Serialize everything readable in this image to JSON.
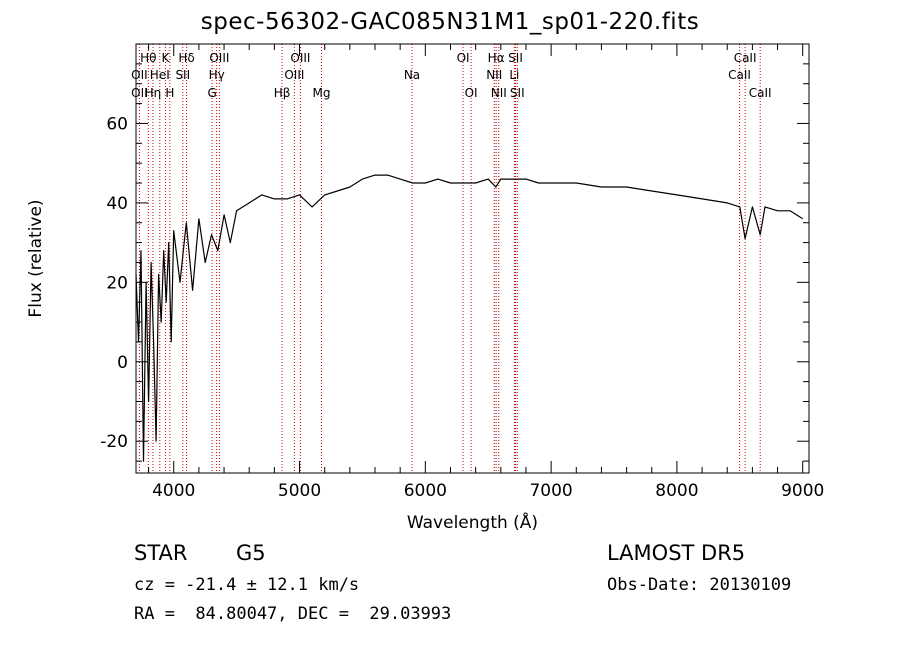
{
  "chart_data": {
    "type": "line",
    "title": "spec-56302-GAC085N31M1_sp01-220.fits",
    "xlabel": "Wavelength (Å)",
    "ylabel": "Flux (relative)",
    "xlim": [
      3700,
      9050
    ],
    "ylim": [
      -28,
      80
    ],
    "xticks": [
      4000,
      5000,
      6000,
      7000,
      8000,
      9000
    ],
    "yticks": [
      -20,
      0,
      20,
      40,
      60
    ],
    "grid": false,
    "line_color": "#000000",
    "marker_color": "#cc0000",
    "series": [
      {
        "x": [
          3700,
          3720,
          3740,
          3760,
          3780,
          3800,
          3820,
          3840,
          3860,
          3880,
          3900,
          3920,
          3940,
          3960,
          3980,
          4000,
          4050,
          4100,
          4150,
          4200,
          4250,
          4300,
          4350,
          4400,
          4450,
          4500,
          4600,
          4700,
          4800,
          4900,
          5000,
          5100,
          5200,
          5300,
          5400,
          5500,
          5600,
          5700,
          5800,
          5900,
          6000,
          6100,
          6200,
          6300,
          6400,
          6500,
          6560,
          6600,
          6700,
          6800,
          6900,
          7000,
          7200,
          7400,
          7600,
          7800,
          8000,
          8200,
          8400,
          8500,
          8542,
          8600,
          8662,
          8700,
          8800,
          8900,
          9000
        ],
        "y": [
          22,
          5,
          28,
          -25,
          20,
          -10,
          25,
          5,
          -20,
          22,
          10,
          28,
          15,
          30,
          5,
          33,
          20,
          35,
          18,
          36,
          25,
          32,
          28,
          37,
          30,
          38,
          40,
          42,
          41,
          41,
          42,
          39,
          42,
          43,
          44,
          46,
          47,
          47,
          46,
          45,
          45,
          46,
          45,
          45,
          45,
          46,
          44,
          46,
          46,
          46,
          45,
          45,
          45,
          44,
          44,
          43,
          42,
          41,
          40,
          39,
          31,
          39,
          32,
          39,
          38,
          38,
          36
        ]
      }
    ],
    "lines": [
      {
        "label": "Hθ",
        "x": 3798,
        "row": 1
      },
      {
        "label": "OII",
        "x": 3727,
        "row": 2
      },
      {
        "label": "OII",
        "x": 3727,
        "row": 3
      },
      {
        "label": "Hη",
        "x": 3835,
        "row": 3
      },
      {
        "label": "HeI",
        "x": 3889,
        "row": 2
      },
      {
        "label": "K",
        "x": 3934,
        "row": 1
      },
      {
        "label": "H",
        "x": 3969,
        "row": 3
      },
      {
        "label": "Hδ",
        "x": 4102,
        "row": 1
      },
      {
        "label": "SII",
        "x": 4072,
        "row": 2
      },
      {
        "label": "OIII",
        "x": 4363,
        "row": 1
      },
      {
        "label": "Hγ",
        "x": 4341,
        "row": 2
      },
      {
        "label": "G",
        "x": 4305,
        "row": 3
      },
      {
        "label": "Hβ",
        "x": 4861,
        "row": 3
      },
      {
        "label": "OIII",
        "x": 5007,
        "row": 1
      },
      {
        "label": "OIII",
        "x": 4959,
        "row": 2
      },
      {
        "label": "Mg",
        "x": 5175,
        "row": 3
      },
      {
        "label": "Na",
        "x": 5894,
        "row": 2
      },
      {
        "label": "OI",
        "x": 6300,
        "row": 1
      },
      {
        "label": "OI",
        "x": 6364,
        "row": 3
      },
      {
        "label": "Hα",
        "x": 6563,
        "row": 1
      },
      {
        "label": "NII",
        "x": 6548,
        "row": 2
      },
      {
        "label": "NII",
        "x": 6584,
        "row": 3
      },
      {
        "label": "SII",
        "x": 6717,
        "row": 1
      },
      {
        "label": "Li",
        "x": 6708,
        "row": 2
      },
      {
        "label": "SII",
        "x": 6731,
        "row": 3
      },
      {
        "label": "CaII",
        "x": 8542,
        "row": 1
      },
      {
        "label": "CaII",
        "x": 8498,
        "row": 2
      },
      {
        "label": "CaII",
        "x": 8662,
        "row": 3
      }
    ]
  },
  "info": {
    "object_class": "STAR",
    "subclass": "G5",
    "survey": "LAMOST DR5",
    "redshift": "cz = -21.4 ± 12.1 km/s",
    "obs_date": "Obs-Date: 20130109",
    "coords": "RA =  84.80047, DEC =  29.03993"
  }
}
